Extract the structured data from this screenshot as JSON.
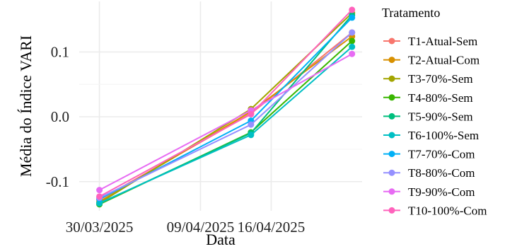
{
  "chart_data": {
    "type": "line",
    "title": "",
    "xlabel": "Data",
    "ylabel": "Média do Índice VARI",
    "x": [
      "2025-03-30",
      "2025-04-14",
      "2025-04-24"
    ],
    "x_ticks": [
      "2025-03-30",
      "2025-04-09",
      "2025-04-16"
    ],
    "x_tick_labels": [
      "30/03/2025",
      "09/04/2025",
      "16/04/2025"
    ],
    "xlim": [
      "2025-03-28",
      "2025-04-25"
    ],
    "y_ticks": [
      -0.1,
      0.0,
      0.1
    ],
    "y_tick_labels": [
      "-0.1",
      "0.0",
      "0.1"
    ],
    "ylim": [
      -0.145,
      0.178
    ],
    "grid": true,
    "legend": {
      "title": "Tratamento",
      "position": "right"
    },
    "series": [
      {
        "name": "T1-Atual-Sem",
        "color": "#F8766D",
        "values": [
          -0.128,
          0.005,
          0.13
        ]
      },
      {
        "name": "T2-Atual-Com",
        "color": "#D89000",
        "values": [
          -0.131,
          0.008,
          0.124
        ]
      },
      {
        "name": "T3-70%-Sem",
        "color": "#A3A500",
        "values": [
          -0.133,
          0.012,
          0.16
        ]
      },
      {
        "name": "T4-80%-Sem",
        "color": "#39B600",
        "values": [
          -0.135,
          -0.024,
          0.117
        ]
      },
      {
        "name": "T5-90%-Sem",
        "color": "#00BF7D",
        "values": [
          -0.134,
          -0.025,
          0.157
        ]
      },
      {
        "name": "T6-100%-Sem",
        "color": "#00BFC4",
        "values": [
          -0.133,
          -0.028,
          0.108
        ]
      },
      {
        "name": "T7-70%-Com",
        "color": "#00B0F6",
        "values": [
          -0.127,
          -0.006,
          0.153
        ]
      },
      {
        "name": "T8-80%-Com",
        "color": "#9590FF",
        "values": [
          -0.125,
          -0.012,
          0.13
        ]
      },
      {
        "name": "T9-90%-Com",
        "color": "#E76BF3",
        "values": [
          -0.113,
          0.01,
          0.097
        ]
      },
      {
        "name": "T10-100%-Com",
        "color": "#FF62BC",
        "values": [
          -0.123,
          0.004,
          0.165
        ]
      }
    ]
  }
}
